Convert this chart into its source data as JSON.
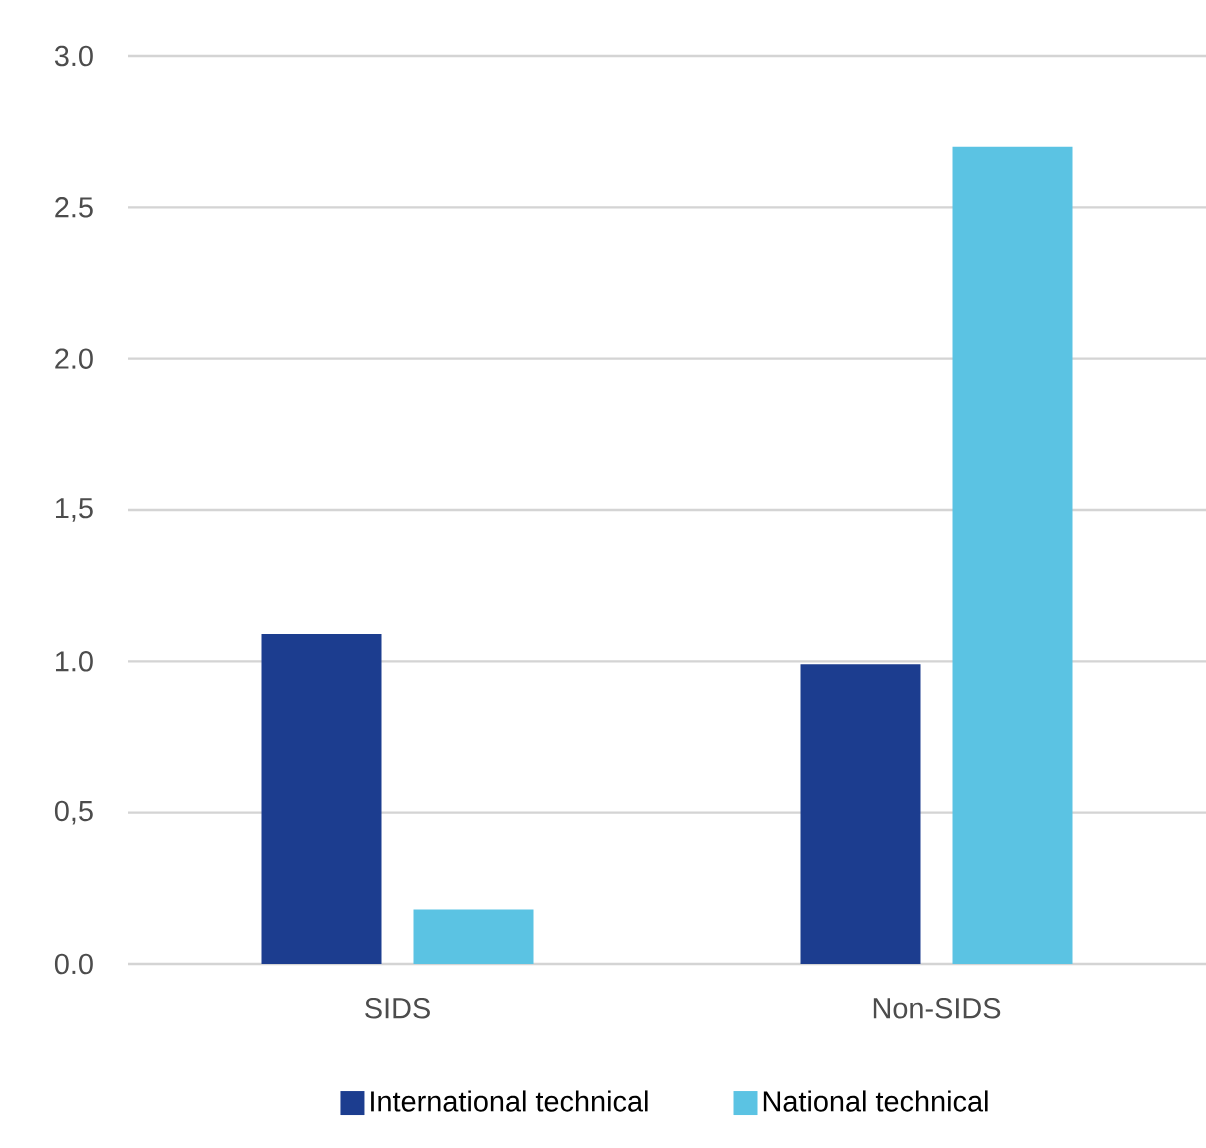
{
  "chart_data": {
    "type": "bar",
    "categories": [
      "SIDS",
      "Non-SIDS"
    ],
    "series": [
      {
        "name": "International technical",
        "color": "#1c3d8f",
        "values": [
          1.09,
          0.99
        ]
      },
      {
        "name": "National technical",
        "color": "#5bc3e3",
        "values": [
          0.18,
          2.7
        ]
      }
    ],
    "ylim": [
      0,
      3.0
    ],
    "yticks": [
      {
        "value": 0,
        "label": "0.0"
      },
      {
        "value": 0.5,
        "label": "0,5"
      },
      {
        "value": 1.0,
        "label": "1.0"
      },
      {
        "value": 1.5,
        "label": "1,5"
      },
      {
        "value": 2.0,
        "label": "2.0"
      },
      {
        "value": 2.5,
        "label": "2.5"
      },
      {
        "value": 3.0,
        "label": "3.0"
      }
    ],
    "grid": "y",
    "legend": "bottom"
  }
}
